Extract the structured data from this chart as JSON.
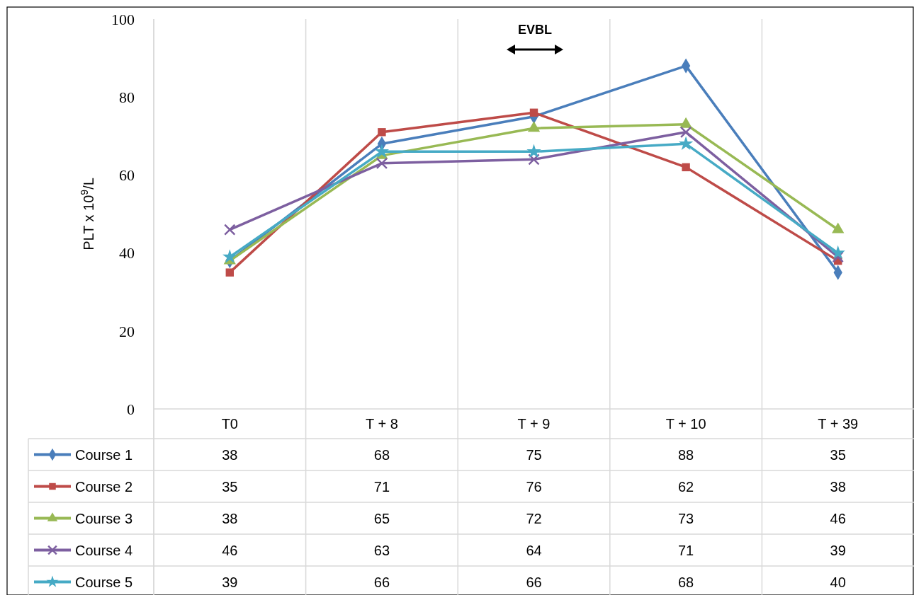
{
  "chart_data": {
    "type": "line",
    "ylabel": "PLT x 10$^{9}$/L",
    "categories": [
      "T0",
      "T + 8",
      "T + 9",
      "T + 10",
      "T + 39"
    ],
    "series": [
      {
        "name": "Course 1",
        "color": "#4a7ebb",
        "marker": "diamond",
        "values": [
          38,
          68,
          75,
          88,
          35
        ]
      },
      {
        "name": "Course 2",
        "color": "#be4b48",
        "marker": "square",
        "values": [
          35,
          71,
          76,
          62,
          38
        ]
      },
      {
        "name": "Course 3",
        "color": "#98b954",
        "marker": "triangle",
        "values": [
          38,
          65,
          72,
          73,
          46
        ]
      },
      {
        "name": "Course 4",
        "color": "#7d5fa0",
        "marker": "cross",
        "values": [
          46,
          63,
          64,
          71,
          39
        ]
      },
      {
        "name": "Course 5",
        "color": "#46aac5",
        "marker": "star",
        "values": [
          39,
          66,
          66,
          68,
          40
        ]
      }
    ],
    "ylim": [
      0,
      100
    ],
    "yticks": [
      0,
      20,
      40,
      60,
      80,
      100
    ],
    "grid": "x",
    "legend": "bottom",
    "data_labels": true,
    "annotations": [
      "EVBL"
    ]
  }
}
